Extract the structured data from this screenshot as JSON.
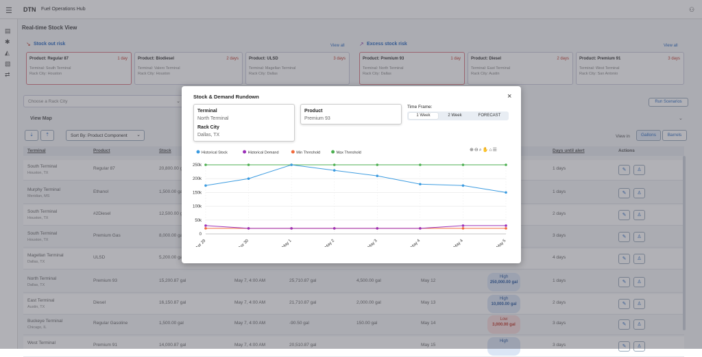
{
  "app": {
    "title": "Fuel Operations Hub",
    "logo": "DTN"
  },
  "page": {
    "title": "Real-time Stock View"
  },
  "stockout": {
    "title": "Stock out risk",
    "view_all": "View all",
    "cards": [
      {
        "product": "Product: Regular 87",
        "days": "1 day",
        "terminal": "Terminal: South Terminal",
        "city": "Rack City: Houston"
      },
      {
        "product": "Product: Biodiesel",
        "days": "2 days",
        "terminal": "Terminal: Valero Terminal",
        "city": "Rack City: Houston"
      },
      {
        "product": "Product: ULSD",
        "days": "3 days",
        "terminal": "Terminal: Magellan Terminal",
        "city": "Rack City: Dallas"
      }
    ]
  },
  "excess": {
    "title": "Excess stock risk",
    "view_all": "View all",
    "cards": [
      {
        "product": "Product: Premium 93",
        "days": "1 day",
        "terminal": "Terminal: North Terminal",
        "city": "Rack City: Dallas"
      },
      {
        "product": "Product: Diesel",
        "days": "2 days",
        "terminal": "Terminal: East Terminal",
        "city": "Rack City: Austin"
      },
      {
        "product": "Product: Premium 91",
        "days": "3 days",
        "terminal": "Terminal: West Terminal",
        "city": "Rack City: San Antonio"
      }
    ]
  },
  "filters": {
    "rack_city_placeholder": "Choose a Rack City",
    "run_scenarios": "Run Scenarios",
    "view_map": "View Map",
    "sort_by": "Sort By: Product Component",
    "view_in": "View in",
    "gallons": "Gallons",
    "barrels": "Barrels"
  },
  "table": {
    "headers": [
      "Terminal",
      "Product",
      "Stock",
      "Days until alert",
      "Actions"
    ],
    "rows": [
      {
        "terminal": "South Terminal",
        "city": "Houston, TX",
        "product": "Regular 87",
        "stock": "20,800.00 gal",
        "days": "1 days"
      },
      {
        "terminal": "Murphy Terminal",
        "city": "Meridian, MS",
        "product": "Ethanol",
        "stock": "1,500.00 gal",
        "days": "1 days"
      },
      {
        "terminal": "South Terminal",
        "city": "Houston, TX",
        "product": "#2Diesel",
        "stock": "12,500.00 gal",
        "days": "2 days"
      },
      {
        "terminal": "South Terminal",
        "city": "Houston, TX",
        "product": "Premium Gas",
        "stock": "8,000.00 gal",
        "days": "3 days"
      },
      {
        "terminal": "Magellan Terminal",
        "city": "Dallas, TX",
        "product": "ULSD",
        "stock": "5,200.00 gal",
        "days": "4 days"
      },
      {
        "terminal": "North Terminal",
        "city": "Dallas, TX",
        "product": "Premium 93",
        "stock": "15,200.87 gal",
        "time": "May 7, 4:00 AM",
        "s2": "25,710.87 gal",
        "s3": "4,500.00 gal",
        "date": "May 12",
        "risk": "High",
        "riskval": "250,000.00 gal",
        "days": "1 days"
      },
      {
        "terminal": "East Terminal",
        "city": "Austin, TX",
        "product": "Diesel",
        "stock": "16,150.87 gal",
        "time": "May 7, 4:00 AM",
        "s2": "21,710.87 gal",
        "s3": "2,000.00 gal",
        "date": "May 13",
        "risk": "High",
        "riskval": "10,000.00 gal",
        "days": "2 days"
      },
      {
        "terminal": "Buckeye Terminal",
        "city": "Chicago, IL",
        "product": "Regular Gasoline",
        "stock": "1,500.00 gal",
        "time": "May 7, 4:00 AM",
        "s2": "-90.50 gal",
        "s3": "150.00 gal",
        "date": "May 14",
        "risk": "Low",
        "riskval": "3,000.00 gal",
        "days": "3 days"
      },
      {
        "terminal": "West Terminal",
        "city": "",
        "product": "Premium 91",
        "stock": "14,000.87 gal",
        "time": "May 7, 4:00 AM",
        "s2": "20,510.87 gal",
        "s3": "",
        "date": "May 15",
        "risk": "High",
        "riskval": "",
        "days": "3 days"
      }
    ]
  },
  "modal": {
    "title": "Stock & Demand Rundown",
    "close": "×",
    "terminal_label": "Terminal",
    "terminal_value": "North Terminal",
    "rack_city_label": "Rack City",
    "rack_city_value": "Dallas, TX",
    "product_label": "Product",
    "product_value": "Premium 93",
    "timeframe_label": "Time Frame:",
    "timeframe_options": [
      "1 Week",
      "2 Week",
      "FORECAST"
    ],
    "timeframe_selected": "1 Week"
  },
  "chart_data": {
    "type": "line",
    "x": [
      "Apr 29",
      "Apr 30",
      "May 1",
      "May 2",
      "May 3",
      "May 4",
      "May 4",
      "May 5"
    ],
    "ylim": [
      0,
      250000
    ],
    "yticks": [
      "0",
      "50k",
      "100k",
      "150k",
      "200k",
      "250k"
    ],
    "series": [
      {
        "name": "Historical Stock",
        "color": "#3b9be0",
        "values": [
          175000,
          200000,
          250000,
          230000,
          210000,
          180000,
          175000,
          150000
        ]
      },
      {
        "name": "Historical Demand",
        "color": "#9b2fb8",
        "values": [
          30000,
          20000,
          20000,
          20000,
          20000,
          20000,
          30000,
          30000
        ]
      },
      {
        "name": "Min Threshold",
        "color": "#f26a3b",
        "values": [
          20000,
          20000,
          20000,
          20000,
          20000,
          20000,
          20000,
          20000
        ]
      },
      {
        "name": "Max Threshold",
        "color": "#4caf50",
        "values": [
          250000,
          250000,
          250000,
          250000,
          250000,
          250000,
          250000,
          250000
        ]
      }
    ],
    "grid": true,
    "legend": "top-left"
  }
}
